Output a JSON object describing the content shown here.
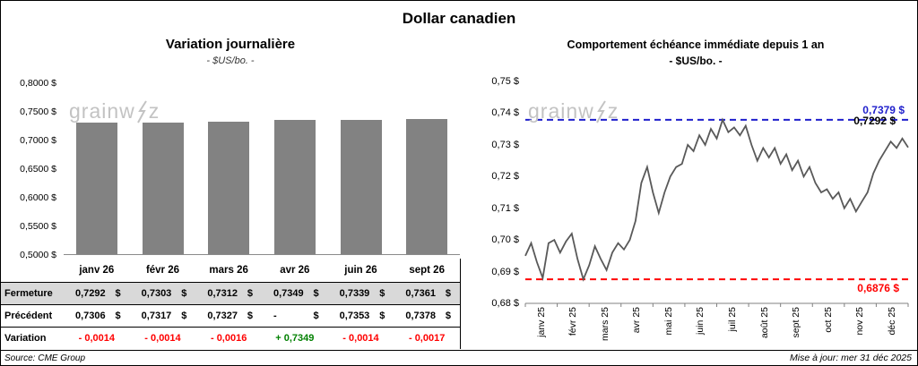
{
  "page": {
    "title": "Dollar canadien",
    "source": "Source: CME Group",
    "updated": "Mise à jour: mer 31 déc 2025",
    "watermark": {
      "prefix": "grainw",
      "suffix": "z"
    }
  },
  "table": {
    "header": [
      "janv 26",
      "févr 26",
      "mars 26",
      "avr 26",
      "juin 26",
      "sept 26"
    ],
    "rows": [
      {
        "label": "Fermeture",
        "shaded": true,
        "colored": false,
        "values": [
          "0,7292 $",
          "0,7303 $",
          "0,7312 $",
          "0,7349 $",
          "0,7339 $",
          "0,7361 $"
        ]
      },
      {
        "label": "Précédent",
        "shaded": false,
        "colored": false,
        "values": [
          "0,7306 $",
          "0,7317 $",
          "0,7327 $",
          "- $",
          "0,7353 $",
          "0,7378 $"
        ]
      },
      {
        "label": "Variation",
        "shaded": false,
        "colored": true,
        "values": [
          "- 0,0014",
          "- 0,0014",
          "- 0,0016",
          "+ 0,7349",
          "- 0,0014",
          "- 0,0017"
        ]
      }
    ]
  },
  "chart_data": [
    {
      "type": "bar",
      "title": "Variation  journalière",
      "subtitle": "- $US/bo. -",
      "categories": [
        "janv 26",
        "févr 26",
        "mars 26",
        "avr 26",
        "juin 26",
        "sept 26"
      ],
      "values": [
        0.7292,
        0.7303,
        0.7312,
        0.7349,
        0.7339,
        0.7361
      ],
      "ylim": [
        0.5,
        0.8
      ],
      "ytick_labels": [
        "0,8000 $",
        "0,7500 $",
        "0,7000 $",
        "0,6500 $",
        "0,6000 $",
        "0,5500 $",
        "0,5000 $"
      ],
      "bar_color": "#828282",
      "grid": false,
      "legend": "none"
    },
    {
      "type": "line",
      "title": "Comportement échéance immédiate depuis 1 an",
      "subtitle": "- $US/bo. -",
      "x_labels": [
        "janv 25",
        "févr 25",
        "mars 25",
        "avr 25",
        "mai 25",
        "juin 25",
        "juil 25",
        "août 25",
        "sept 25",
        "oct 25",
        "nov 25",
        "déc 25"
      ],
      "ylim": [
        0.68,
        0.75
      ],
      "ytick_labels": [
        "0,75 $",
        "0,74 $",
        "0,73 $",
        "0,72 $",
        "0,71 $",
        "0,70 $",
        "0,69 $",
        "0,68 $"
      ],
      "values": [
        0.695,
        0.699,
        0.693,
        0.688,
        0.699,
        0.7,
        0.696,
        0.6995,
        0.702,
        0.694,
        0.6876,
        0.692,
        0.698,
        0.694,
        0.6905,
        0.696,
        0.699,
        0.697,
        0.7,
        0.706,
        0.718,
        0.723,
        0.715,
        0.7085,
        0.715,
        0.72,
        0.723,
        0.724,
        0.73,
        0.728,
        0.733,
        0.73,
        0.735,
        0.732,
        0.7379,
        0.734,
        0.7355,
        0.733,
        0.736,
        0.73,
        0.725,
        0.729,
        0.726,
        0.729,
        0.724,
        0.727,
        0.722,
        0.725,
        0.72,
        0.723,
        0.718,
        0.715,
        0.716,
        0.713,
        0.715,
        0.71,
        0.713,
        0.709,
        0.712,
        0.715,
        0.721,
        0.725,
        0.728,
        0.731,
        0.729,
        0.732,
        0.7292
      ],
      "line_color": "#595959",
      "max_line": {
        "value": 0.7379,
        "label": "0,7379 $",
        "color": "#1F1FCC"
      },
      "min_line": {
        "value": 0.6876,
        "label": "0,6876 $",
        "color": "#FF0000"
      },
      "last_label": {
        "value": 0.7292,
        "label": "0,7292 $",
        "color": "#000000"
      },
      "grid": false,
      "legend": "none"
    }
  ]
}
